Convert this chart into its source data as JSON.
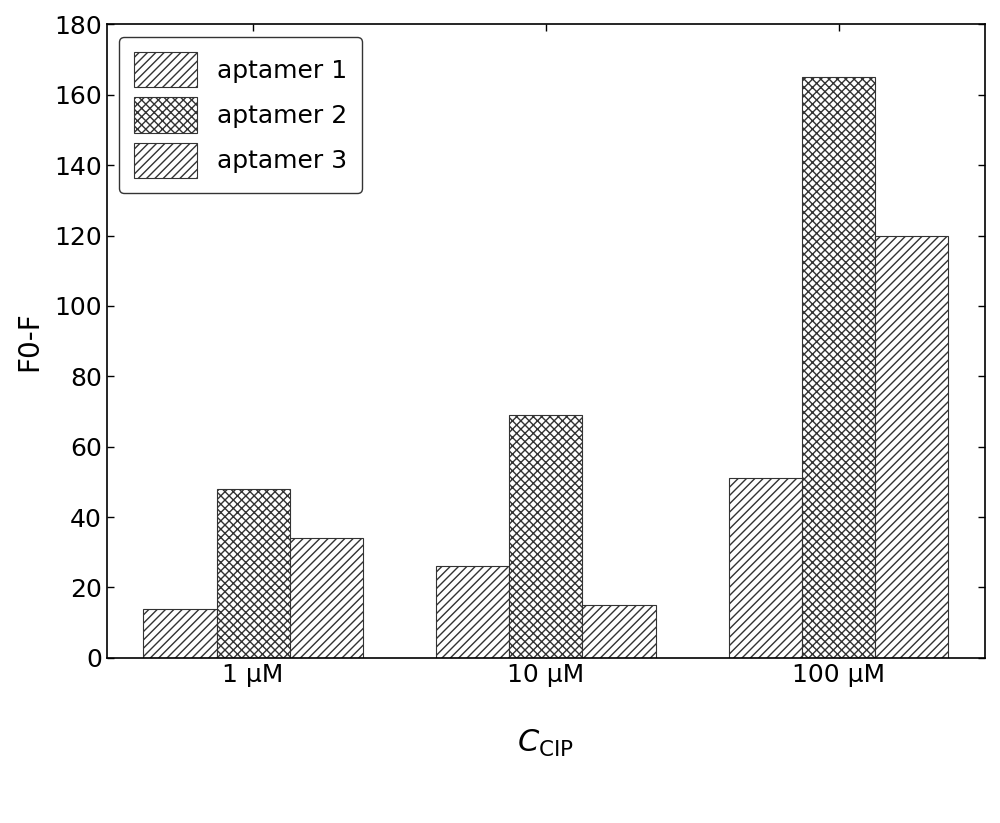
{
  "categories": [
    "1 μM",
    "10 μM",
    "100 μM"
  ],
  "series": {
    "aptamer 1": [
      14,
      26,
      51
    ],
    "aptamer 2": [
      48,
      69,
      165
    ],
    "aptamer 3": [
      34,
      15,
      120
    ]
  },
  "ylabel": "F0-F",
  "ylim": [
    0,
    180
  ],
  "yticks": [
    0,
    20,
    40,
    60,
    80,
    100,
    120,
    140,
    160,
    180
  ],
  "bar_width": 0.25,
  "legend_labels": [
    "aptamer 1",
    "aptamer 2",
    "aptamer 3"
  ],
  "hatch_patterns": [
    "////",
    "xxxx",
    "////"
  ],
  "hatch_linewidths": [
    1.0,
    1.0,
    1.0
  ],
  "bar_edge_color": "#333333",
  "bar_face_color": "white",
  "background_color": "white",
  "axis_label_fontsize": 20,
  "tick_fontsize": 18,
  "legend_fontsize": 18
}
